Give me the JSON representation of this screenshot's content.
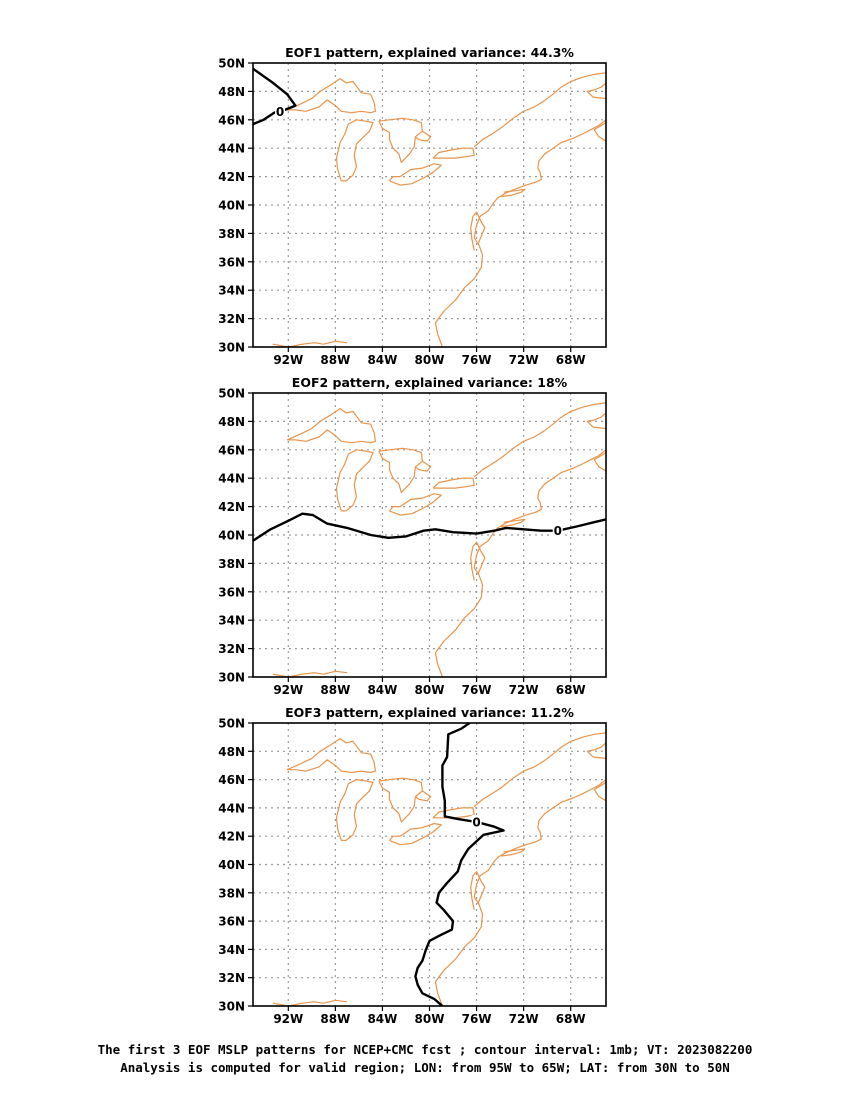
{
  "panels": [
    {
      "title": "EOF1 pattern, explained variance: 44.3%",
      "contour_label": "0",
      "contour_value_mb": 0,
      "zero_contour": [
        [
          -95,
          49.6
        ],
        [
          -93.3,
          48.6
        ],
        [
          -92.1,
          47.8
        ],
        [
          -91.4,
          47.0
        ],
        [
          -92.3,
          46.7
        ],
        [
          -93.2,
          46.5
        ],
        [
          -94.1,
          46.0
        ],
        [
          -95,
          45.7
        ]
      ],
      "contour_label_pos": [
        -92.7,
        46.6
      ]
    },
    {
      "title": "EOF2 pattern, explained variance: 18%",
      "contour_label": "0",
      "contour_value_mb": 0,
      "zero_contour": [
        [
          -95,
          39.6
        ],
        [
          -93.5,
          40.4
        ],
        [
          -92,
          41.0
        ],
        [
          -90.8,
          41.5
        ],
        [
          -89.9,
          41.4
        ],
        [
          -88.7,
          40.8
        ],
        [
          -87,
          40.5
        ],
        [
          -85,
          40.0
        ],
        [
          -83.5,
          39.8
        ],
        [
          -82,
          39.9
        ],
        [
          -80.5,
          40.3
        ],
        [
          -79.5,
          40.4
        ],
        [
          -78,
          40.2
        ],
        [
          -76,
          40.1
        ],
        [
          -74.5,
          40.3
        ],
        [
          -73.5,
          40.5
        ],
        [
          -72,
          40.4
        ],
        [
          -70.5,
          40.3
        ],
        [
          -69.1,
          40.3
        ],
        [
          -67.5,
          40.6
        ],
        [
          -66,
          40.9
        ],
        [
          -65,
          41.1
        ]
      ],
      "contour_label_pos": [
        -69.1,
        40.3
      ]
    },
    {
      "title": "EOF3 pattern, explained variance: 11.2%",
      "contour_label": "0",
      "contour_value_mb": 0,
      "zero_contour": [
        [
          -76.6,
          50
        ],
        [
          -77.3,
          49.6
        ],
        [
          -78.4,
          49.2
        ],
        [
          -78.5,
          47.6
        ],
        [
          -78.9,
          47.0
        ],
        [
          -78.9,
          45.5
        ],
        [
          -78.7,
          44.5
        ],
        [
          -78.7,
          43.4
        ],
        [
          -77.5,
          43.2
        ],
        [
          -76,
          43.0
        ],
        [
          -74.6,
          42.7
        ],
        [
          -73.7,
          42.4
        ],
        [
          -75.4,
          42.1
        ],
        [
          -76.7,
          41.1
        ],
        [
          -77.3,
          40.3
        ],
        [
          -77.6,
          39.5
        ],
        [
          -78.5,
          38.7
        ],
        [
          -79.2,
          38.0
        ],
        [
          -79.4,
          37.3
        ],
        [
          -78.8,
          36.8
        ],
        [
          -78.0,
          36.0
        ],
        [
          -78.1,
          35.4
        ],
        [
          -79.1,
          35.0
        ],
        [
          -80.0,
          34.6
        ],
        [
          -80.3,
          34.0
        ],
        [
          -80.6,
          33.2
        ],
        [
          -81.0,
          32.7
        ],
        [
          -81.2,
          32.1
        ],
        [
          -81.0,
          31.5
        ],
        [
          -80.6,
          30.9
        ],
        [
          -79.6,
          30.5
        ],
        [
          -78.9,
          30.0
        ]
      ],
      "contour_label_pos": [
        -76.0,
        43.0
      ]
    }
  ],
  "axes": {
    "lon_range": [
      -95,
      -65
    ],
    "lat_range": [
      30,
      50
    ],
    "x_ticks": [
      -92,
      -88,
      -84,
      -80,
      -76,
      -72,
      -68
    ],
    "x_tick_labels": [
      "92W",
      "88W",
      "84W",
      "80W",
      "76W",
      "72W",
      "68W"
    ],
    "y_ticks": [
      30,
      32,
      34,
      36,
      38,
      40,
      42,
      44,
      46,
      48,
      50
    ],
    "y_tick_labels": [
      "30N",
      "32N",
      "34N",
      "36N",
      "38N",
      "40N",
      "42N",
      "44N",
      "46N",
      "48N",
      "50N"
    ],
    "grid": "dotted"
  },
  "colors": {
    "coastline": "#e8944a",
    "contour": "#000000",
    "grid": "#9a9a9a"
  },
  "caption": {
    "line1": "The first 3 EOF MSLP patterns for NCEP+CMC fcst ; contour interval: 1mb; VT: 2023082200",
    "line2": "Analysis is computed for valid region; LON: from 95W to 65W; LAT: from 30N to 50N"
  }
}
